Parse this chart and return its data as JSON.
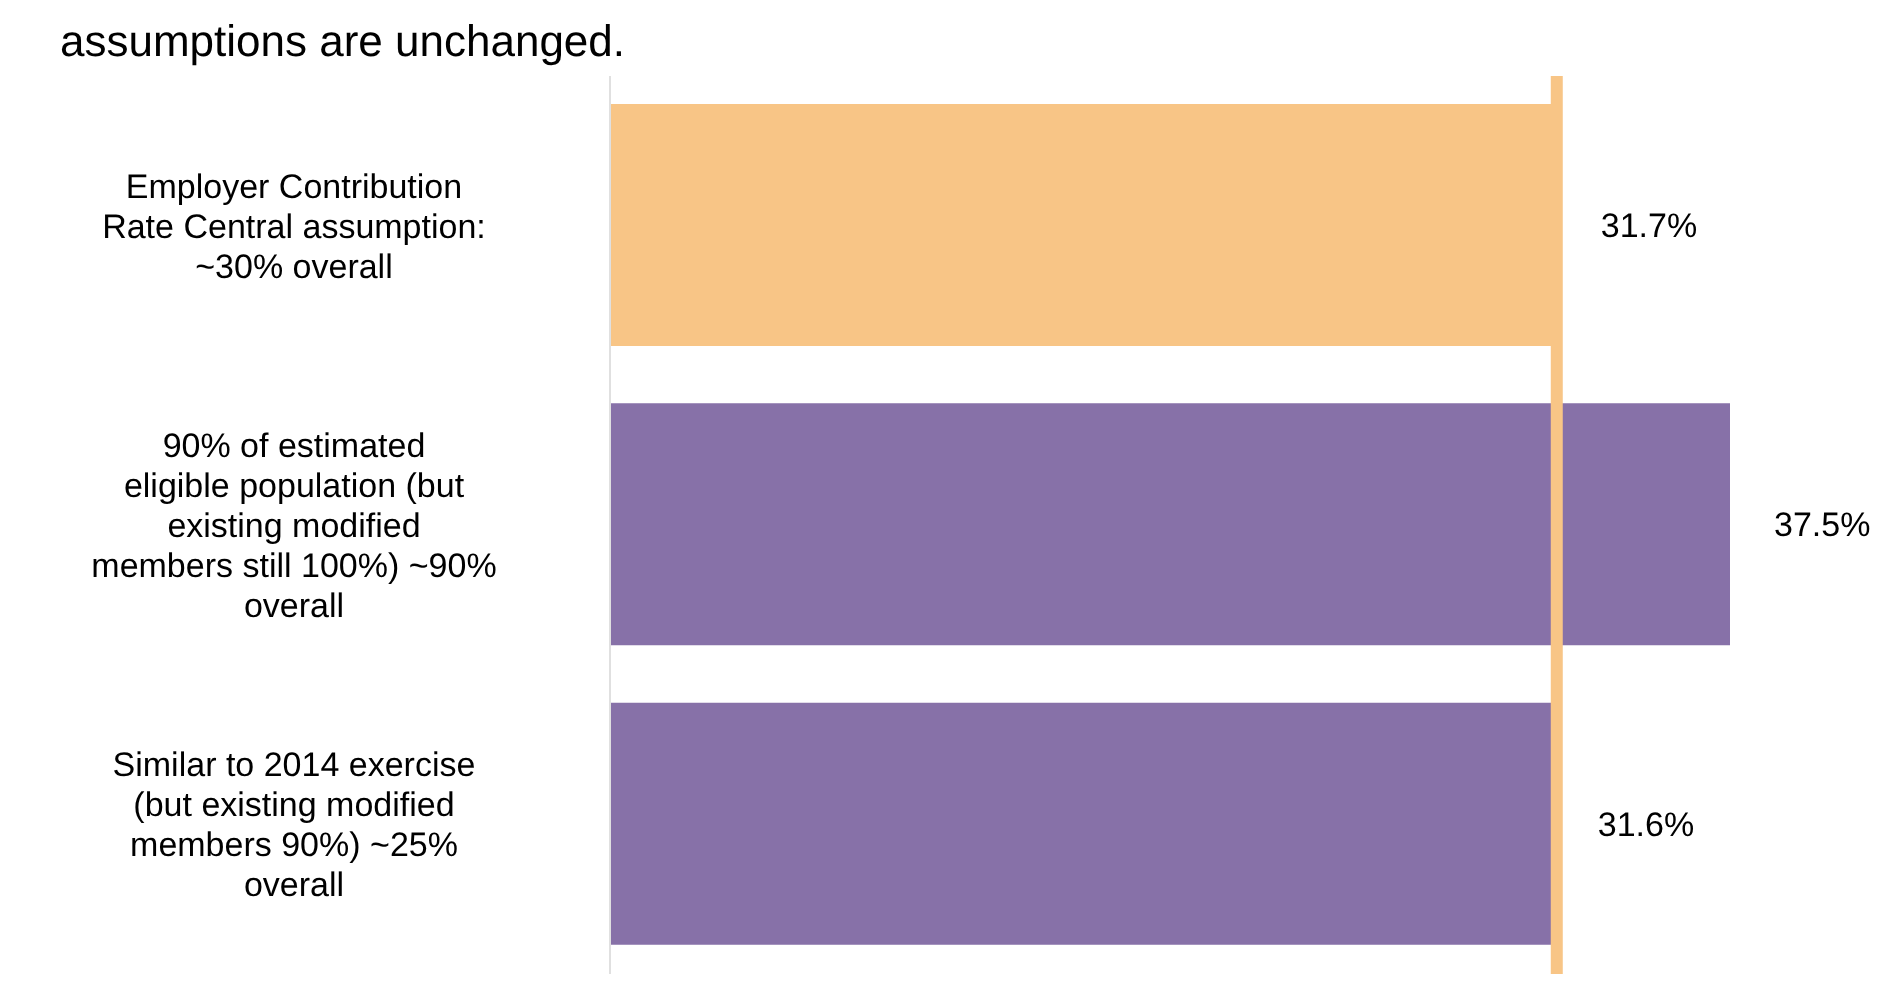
{
  "chart_data": {
    "type": "bar",
    "orientation": "horizontal",
    "title": "assumptions are unchanged.",
    "categories": [
      "Employer Contribution Rate Central assumption: ~30% overall",
      "90% of estimated eligible population (but existing modified members still 100%) ~90% overall",
      "Similar to 2014 exercise (but existing modified members 90%) ~25% overall"
    ],
    "values": [
      31.7,
      37.5,
      31.6
    ],
    "colors": [
      "#f8c586",
      "#8771a8",
      "#8771a8"
    ],
    "value_labels": [
      "31.7%",
      "37.5%",
      "31.6%"
    ],
    "ref_lines": [
      {
        "axis": "x",
        "value": 31.7,
        "color": "#f8c586"
      }
    ]
  }
}
